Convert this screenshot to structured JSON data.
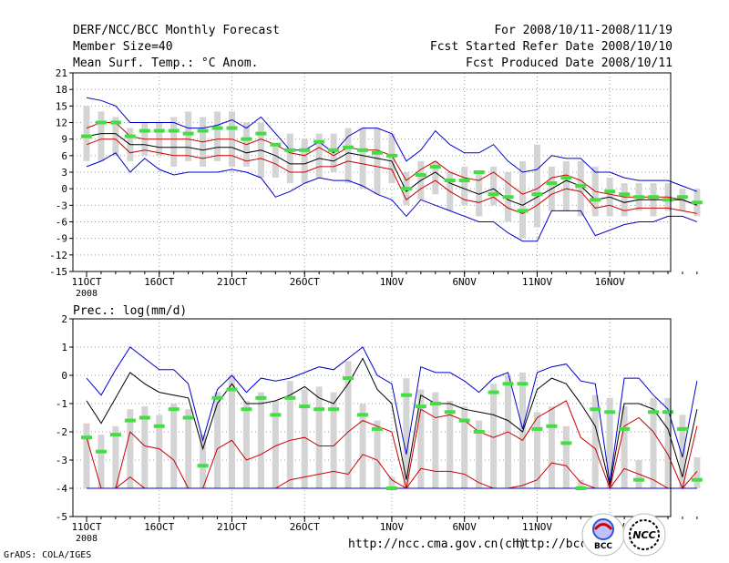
{
  "header": {
    "title": "DERF/NCC/BCC Monthly Forecast",
    "member_size": "Member Size=40",
    "variable": "Mean Surf. Temp.: °C Anom.",
    "period": "For 2008/10/11-2008/11/19",
    "fcst_started": "Fcst Started Refer Date 2008/10/10",
    "fcst_produced": "Fcst Produced Date 2008/10/11"
  },
  "footer": {
    "grads": "GrADS: COLA/IGES",
    "url1": "http://ncc.cma.gov.cn(ch)",
    "url2": "http://bcc.cma.gov.cn",
    "logo_bcc": "BCC",
    "logo_ncc": "NCC"
  },
  "chart_data": [
    {
      "type": "line",
      "title": "Mean Surf. Temp.: °C Anom.",
      "ylim": [
        -15,
        21
      ],
      "yticks": [
        21,
        18,
        15,
        12,
        9,
        6,
        3,
        0,
        -3,
        -6,
        -9,
        -12,
        -15
      ],
      "xticks": [
        {
          "day": 0,
          "label": "11OCT"
        },
        {
          "day": 5,
          "label": "16OCT"
        },
        {
          "day": 10,
          "label": "21OCT"
        },
        {
          "day": 15,
          "label": "26OCT"
        },
        {
          "day": 21,
          "label": "1NOV"
        },
        {
          "day": 26,
          "label": "6NOV"
        },
        {
          "day": 31,
          "label": "11NOV"
        },
        {
          "day": 36,
          "label": "16NOV"
        }
      ],
      "year_label": "2008",
      "series": [
        {
          "name": "max",
          "color": "#0000cc",
          "values": [
            16.5,
            16,
            15,
            12,
            12,
            12,
            12,
            11,
            11,
            11.5,
            12.5,
            11,
            13,
            10,
            7,
            7,
            8.5,
            6.5,
            9.5,
            11,
            11,
            10,
            5,
            7,
            10.5,
            8,
            6.5,
            6.5,
            8,
            5,
            3,
            3.5,
            6,
            5.5,
            5.5,
            3,
            3,
            2,
            1.5,
            1.5,
            1.5,
            0.5,
            -0.5
          ]
        },
        {
          "name": "upper",
          "color": "#cc0000",
          "values": [
            11,
            12,
            12,
            9.5,
            9,
            9,
            9,
            9,
            8.5,
            9,
            9,
            8,
            9,
            8,
            6.5,
            6,
            7.5,
            6,
            7.5,
            7,
            7,
            6,
            1.5,
            3.5,
            5,
            3,
            2,
            1.5,
            3,
            1,
            -1,
            0,
            2,
            2.5,
            1.5,
            -0.5,
            -1,
            -1.5,
            -1.5,
            -1.5,
            -1.5,
            -2,
            -3
          ]
        },
        {
          "name": "mean",
          "color": "#000000",
          "values": [
            9.5,
            10,
            10,
            8,
            8,
            7.5,
            7.5,
            7.5,
            7,
            7.5,
            7.5,
            6.5,
            7,
            6,
            4.5,
            4.5,
            5.5,
            5,
            6.5,
            6,
            5.5,
            5,
            -0.5,
            1.5,
            3,
            1,
            0,
            -1,
            0,
            -2,
            -3,
            -1.5,
            0,
            1.5,
            0.5,
            -2,
            -1.5,
            -2.5,
            -2,
            -2,
            -2,
            -2,
            -3
          ]
        },
        {
          "name": "lower",
          "color": "#cc0000",
          "values": [
            8,
            9,
            9,
            6.5,
            7,
            6.5,
            6,
            6,
            5.5,
            6,
            6,
            5,
            5.5,
            4.5,
            3,
            3,
            4,
            4,
            5,
            4.5,
            4,
            3.5,
            -2,
            0,
            1.5,
            -0.5,
            -2,
            -2.5,
            -1.5,
            -3.5,
            -4.5,
            -3,
            -1,
            0,
            -0.5,
            -3.5,
            -3,
            -4,
            -3.5,
            -3.5,
            -3.5,
            -4,
            -4.5
          ]
        },
        {
          "name": "min",
          "color": "#0000cc",
          "values": [
            4,
            5,
            6.5,
            3,
            5.5,
            3.5,
            2.5,
            3,
            3,
            3,
            3.5,
            3,
            2,
            -1.5,
            -0.5,
            1,
            2,
            1.5,
            1.5,
            0.5,
            -1,
            -2,
            -5,
            -2,
            -3,
            -4,
            -5,
            -6,
            -6,
            -8,
            -9.5,
            -9.5,
            -4,
            -4,
            -4,
            -8.5,
            -7.5,
            -6.5,
            -6,
            -6,
            -5,
            -5,
            -6
          ]
        },
        {
          "name": "observed",
          "color": "#44dd44",
          "values": [
            9.5,
            12,
            12,
            9.5,
            10.5,
            10.5,
            10.5,
            10,
            10.5,
            11,
            11,
            9,
            10,
            8,
            7,
            7,
            8.5,
            7,
            7.5,
            7,
            6.5,
            6,
            0,
            2.5,
            4,
            1.5,
            1.5,
            3,
            -1,
            -1.5,
            -4,
            -1,
            1,
            2,
            0.5,
            -2,
            -0.5,
            -1,
            -1.5,
            -1.5,
            -2,
            -1.5,
            -2.5
          ]
        }
      ],
      "boxes": [
        [
          5,
          15
        ],
        [
          5,
          14
        ],
        [
          6,
          13
        ],
        [
          5,
          11
        ],
        [
          6,
          12
        ],
        [
          6,
          12
        ],
        [
          4,
          13
        ],
        [
          5,
          14
        ],
        [
          4,
          13
        ],
        [
          5,
          14
        ],
        [
          4,
          14
        ],
        [
          4,
          12
        ],
        [
          2,
          12
        ],
        [
          2,
          8
        ],
        [
          1,
          10
        ],
        [
          1,
          9
        ],
        [
          2,
          10
        ],
        [
          3,
          10
        ],
        [
          1,
          11
        ],
        [
          0,
          11
        ],
        [
          -1,
          11
        ],
        [
          1,
          10
        ],
        [
          -3,
          3
        ],
        [
          -2,
          5
        ],
        [
          -1,
          5
        ],
        [
          -4,
          3
        ],
        [
          -3,
          4
        ],
        [
          -5,
          3
        ],
        [
          -3,
          4
        ],
        [
          -6,
          3
        ],
        [
          -9,
          5
        ],
        [
          -7,
          8
        ],
        [
          -4,
          4
        ],
        [
          -4,
          5
        ],
        [
          -5,
          5
        ],
        [
          -5,
          4
        ],
        [
          -5,
          2
        ],
        [
          -5,
          1
        ],
        [
          -4,
          1
        ],
        [
          -5,
          1
        ],
        [
          -4,
          1
        ],
        [
          -4,
          0
        ],
        [
          -5,
          0
        ]
      ]
    },
    {
      "type": "line",
      "title": "Prec.: log(mm/d)",
      "ylim": [
        -5,
        2
      ],
      "yticks": [
        2,
        1,
        0,
        -1,
        -2,
        -3,
        -4,
        -5
      ],
      "xticks": [
        {
          "day": 0,
          "label": "11OCT"
        },
        {
          "day": 5,
          "label": "16OCT"
        },
        {
          "day": 10,
          "label": "21OCT"
        },
        {
          "day": 15,
          "label": "26OCT"
        },
        {
          "day": 21,
          "label": "1NOV"
        },
        {
          "day": 26,
          "label": "6NOV"
        },
        {
          "day": 31,
          "label": "11NOV"
        },
        {
          "day": 36,
          "label": "16NOV"
        }
      ],
      "year_label": "2008",
      "series": [
        {
          "name": "max",
          "color": "#0000cc",
          "values": [
            -0.1,
            -0.7,
            0.2,
            1,
            0.6,
            0.2,
            0.2,
            -0.3,
            -2.3,
            -0.5,
            0,
            -0.6,
            -0.1,
            -0.2,
            -0.1,
            0.1,
            0.3,
            0.2,
            0.6,
            1,
            0,
            -0.3,
            -2.8,
            0.3,
            0.1,
            0.1,
            -0.2,
            -0.6,
            -0.1,
            0.1,
            -1.9,
            0.1,
            0.3,
            0.4,
            -0.2,
            -0.3,
            -3.8,
            -0.1,
            -0.1,
            -0.7,
            -1.2,
            -2.9,
            -0.2
          ]
        },
        {
          "name": "mean",
          "color": "#000000",
          "values": [
            -0.9,
            -1.7,
            -0.8,
            0.1,
            -0.3,
            -0.6,
            -0.7,
            -0.8,
            -2.6,
            -1,
            -0.3,
            -1,
            -1,
            -0.9,
            -0.7,
            -0.4,
            -0.8,
            -1,
            -0.3,
            0.6,
            -0.5,
            -1,
            -3.7,
            -0.7,
            -1,
            -1,
            -1.2,
            -1.3,
            -1.4,
            -1.6,
            -2,
            -0.5,
            -0.1,
            -0.3,
            -1,
            -1.8,
            -3.9,
            -1,
            -1,
            -1.2,
            -1.9,
            -3.6,
            -1.2
          ]
        },
        {
          "name": "upper",
          "color": "#cc0000",
          "values": [
            -2.2,
            -4,
            -4,
            -2,
            -2.5,
            -2.6,
            -3,
            -4,
            -4,
            -2.6,
            -2.3,
            -3,
            -2.8,
            -2.5,
            -2.3,
            -2.2,
            -2.5,
            -2.5,
            -2,
            -1.6,
            -1.8,
            -2,
            -4,
            -1.2,
            -1.5,
            -1.4,
            -1.6,
            -2,
            -2.2,
            -2,
            -2.3,
            -1.5,
            -1.2,
            -0.9,
            -2.2,
            -2.6,
            -4,
            -1.8,
            -1.5,
            -2,
            -2.8,
            -4,
            -1.8
          ]
        },
        {
          "name": "lower",
          "color": "#cc0000",
          "values": [
            -4,
            -4,
            -4,
            -3.6,
            -4,
            -4,
            -4,
            -4,
            -4,
            -4,
            -4,
            -4,
            -4,
            -4,
            -3.7,
            -3.6,
            -3.5,
            -3.4,
            -3.5,
            -2.8,
            -3,
            -3.7,
            -4,
            -3.3,
            -3.4,
            -3.4,
            -3.5,
            -3.8,
            -4,
            -4,
            -3.9,
            -3.7,
            -3.1,
            -3.2,
            -3.8,
            -4,
            -4,
            -3.3,
            -3.5,
            -3.7,
            -4,
            -4,
            -3.4
          ]
        },
        {
          "name": "min",
          "color": "#0000cc",
          "values": [
            -4,
            -4,
            -4,
            -4,
            -4,
            -4,
            -4,
            -4,
            -4,
            -4,
            -4,
            -4,
            -4,
            -4,
            -4,
            -4,
            -4,
            -4,
            -4,
            -4,
            -4,
            -4,
            -4,
            -4,
            -4,
            -4,
            -4,
            -4,
            -4,
            -4,
            -4,
            -4,
            -4,
            -4,
            -4,
            -4,
            -4,
            -4,
            -4,
            -4,
            -4,
            -4,
            -4
          ]
        },
        {
          "name": "observed",
          "color": "#44dd44",
          "values": [
            -2.2,
            -2.7,
            -2.1,
            -1.6,
            -1.5,
            -1.8,
            -1.2,
            -1.5,
            -3.2,
            -0.8,
            -0.5,
            -1.2,
            -0.8,
            -1.4,
            -0.8,
            -1.1,
            -1.2,
            -1.2,
            -0.1,
            -1.4,
            -1.9,
            -4,
            -0.7,
            -1.1,
            -1,
            -1.3,
            -1.6,
            -2,
            -0.6,
            -0.3,
            -0.3,
            -1.9,
            -1.8,
            -2.4,
            -4,
            -1.2,
            -1.3,
            -1.9,
            -3.7,
            -1.3,
            -1.3,
            -1.9,
            -3.7
          ]
        },
        {
          "name": "ref",
          "color": "#0000cc",
          "values": [
            -4,
            -4,
            -4,
            -4,
            -4,
            -4,
            -4,
            -4,
            -4,
            -4,
            -4,
            -4,
            -4,
            -4,
            -4,
            -4,
            -4,
            -4,
            -4,
            -4,
            -4,
            -4,
            -4,
            -4,
            -4,
            -4,
            -4,
            -4,
            -4,
            -4,
            -4,
            -4,
            -4,
            -4,
            -4,
            -4,
            -4,
            -4,
            -4,
            -4,
            -4,
            -4,
            -4
          ]
        }
      ],
      "boxes": [
        [
          -4,
          -1.7
        ],
        [
          -4,
          -2.1
        ],
        [
          -4,
          -1.8
        ],
        [
          -4,
          -1.2
        ],
        [
          -4,
          -1.1
        ],
        [
          -4,
          -1.4
        ],
        [
          -4,
          -1
        ],
        [
          -4,
          -1.2
        ],
        [
          -4,
          -2.1
        ],
        [
          -4,
          -0.6
        ],
        [
          -4,
          0
        ],
        [
          -4,
          -0.9
        ],
        [
          -4,
          -0.6
        ],
        [
          -4,
          -0.9
        ],
        [
          -4,
          -0.2
        ],
        [
          -4,
          -0.5
        ],
        [
          -4,
          -0.4
        ],
        [
          -4,
          -0.6
        ],
        [
          -4,
          0.5
        ],
        [
          -4,
          -1
        ],
        [
          -4,
          -1.6
        ],
        [
          -4,
          -3.6
        ],
        [
          -4,
          -0.1
        ],
        [
          -4,
          -0.5
        ],
        [
          -4,
          -0.6
        ],
        [
          -4,
          -0.9
        ],
        [
          -4,
          -1.1
        ],
        [
          -4,
          -1.6
        ],
        [
          -4,
          -0.3
        ],
        [
          -4,
          0
        ],
        [
          -4,
          0.1
        ],
        [
          -4,
          -1.3
        ],
        [
          -4,
          -1.1
        ],
        [
          -4,
          -1.8
        ],
        [
          -4,
          -3.7
        ],
        [
          -4,
          -0.7
        ],
        [
          -4,
          -0.8
        ],
        [
          -4,
          -1.1
        ],
        [
          -4,
          -3
        ],
        [
          -4,
          -0.8
        ],
        [
          -4,
          -0.8
        ],
        [
          -4,
          -1.4
        ],
        [
          -4,
          -2.9
        ]
      ]
    }
  ]
}
